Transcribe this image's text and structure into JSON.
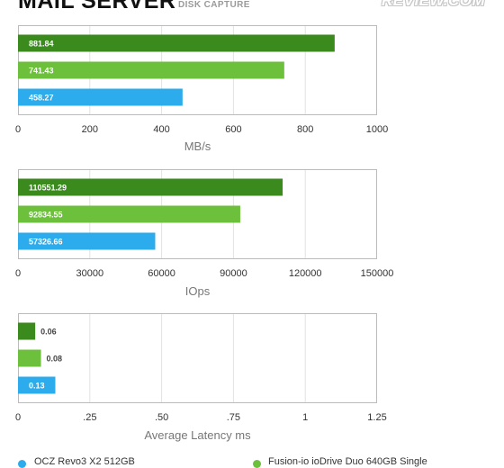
{
  "header": {
    "title": "MAIL SERVER",
    "subtitle": "DISK CAPTURE",
    "logo": "REVIEW.COM"
  },
  "colors": {
    "fusion_dark": "#3b8a1e",
    "fusion_light": "#6cc03b",
    "ocz": "#2cacec",
    "grid": "#e2e2e2",
    "frame": "#bbbbbb"
  },
  "legend": {
    "items": [
      {
        "label": "OCZ Revo3 X2 512GB",
        "color": "#2cacec"
      },
      {
        "label": "Fusion-io ioDrive Duo 640GB Single",
        "color": "#6cc03b"
      }
    ]
  },
  "chart_data": [
    {
      "type": "bar",
      "orientation": "horizontal",
      "xlabel": "MB/s",
      "xlim": [
        0,
        1000
      ],
      "ticks": [
        0,
        200,
        400,
        600,
        800,
        1000
      ],
      "tick_labels": [
        "0",
        "200",
        "400",
        "600",
        "800",
        "1000"
      ],
      "grid": true,
      "bars": [
        {
          "value": 881.84,
          "label": "881.84",
          "color": "#3b8a1e"
        },
        {
          "value": 741.43,
          "label": "741.43",
          "color": "#6cc03b"
        },
        {
          "value": 458.27,
          "label": "458.27",
          "color": "#2cacec"
        }
      ]
    },
    {
      "type": "bar",
      "orientation": "horizontal",
      "xlabel": "IOps",
      "xlim": [
        0,
        150000
      ],
      "ticks": [
        0,
        30000,
        60000,
        90000,
        120000,
        150000
      ],
      "tick_labels": [
        "0",
        "30000",
        "60000",
        "90000",
        "120000",
        "150000"
      ],
      "grid": true,
      "bars": [
        {
          "value": 110551.29,
          "label": "110551.29",
          "color": "#3b8a1e"
        },
        {
          "value": 92834.55,
          "label": "92834.55",
          "color": "#6cc03b"
        },
        {
          "value": 57326.66,
          "label": "57326.66",
          "color": "#2cacec"
        }
      ]
    },
    {
      "type": "bar",
      "orientation": "horizontal",
      "xlabel": "Average Latency ms",
      "xlim": [
        0,
        1.25
      ],
      "ticks": [
        0,
        0.25,
        0.5,
        0.75,
        1,
        1.25
      ],
      "tick_labels": [
        "0",
        ".25",
        ".50",
        ".75",
        "1",
        "1.25"
      ],
      "grid": true,
      "bars": [
        {
          "value": 0.06,
          "label": "0.06",
          "color": "#3b8a1e"
        },
        {
          "value": 0.08,
          "label": "0.08",
          "color": "#6cc03b"
        },
        {
          "value": 0.13,
          "label": "0.13",
          "color": "#2cacec"
        }
      ]
    }
  ]
}
